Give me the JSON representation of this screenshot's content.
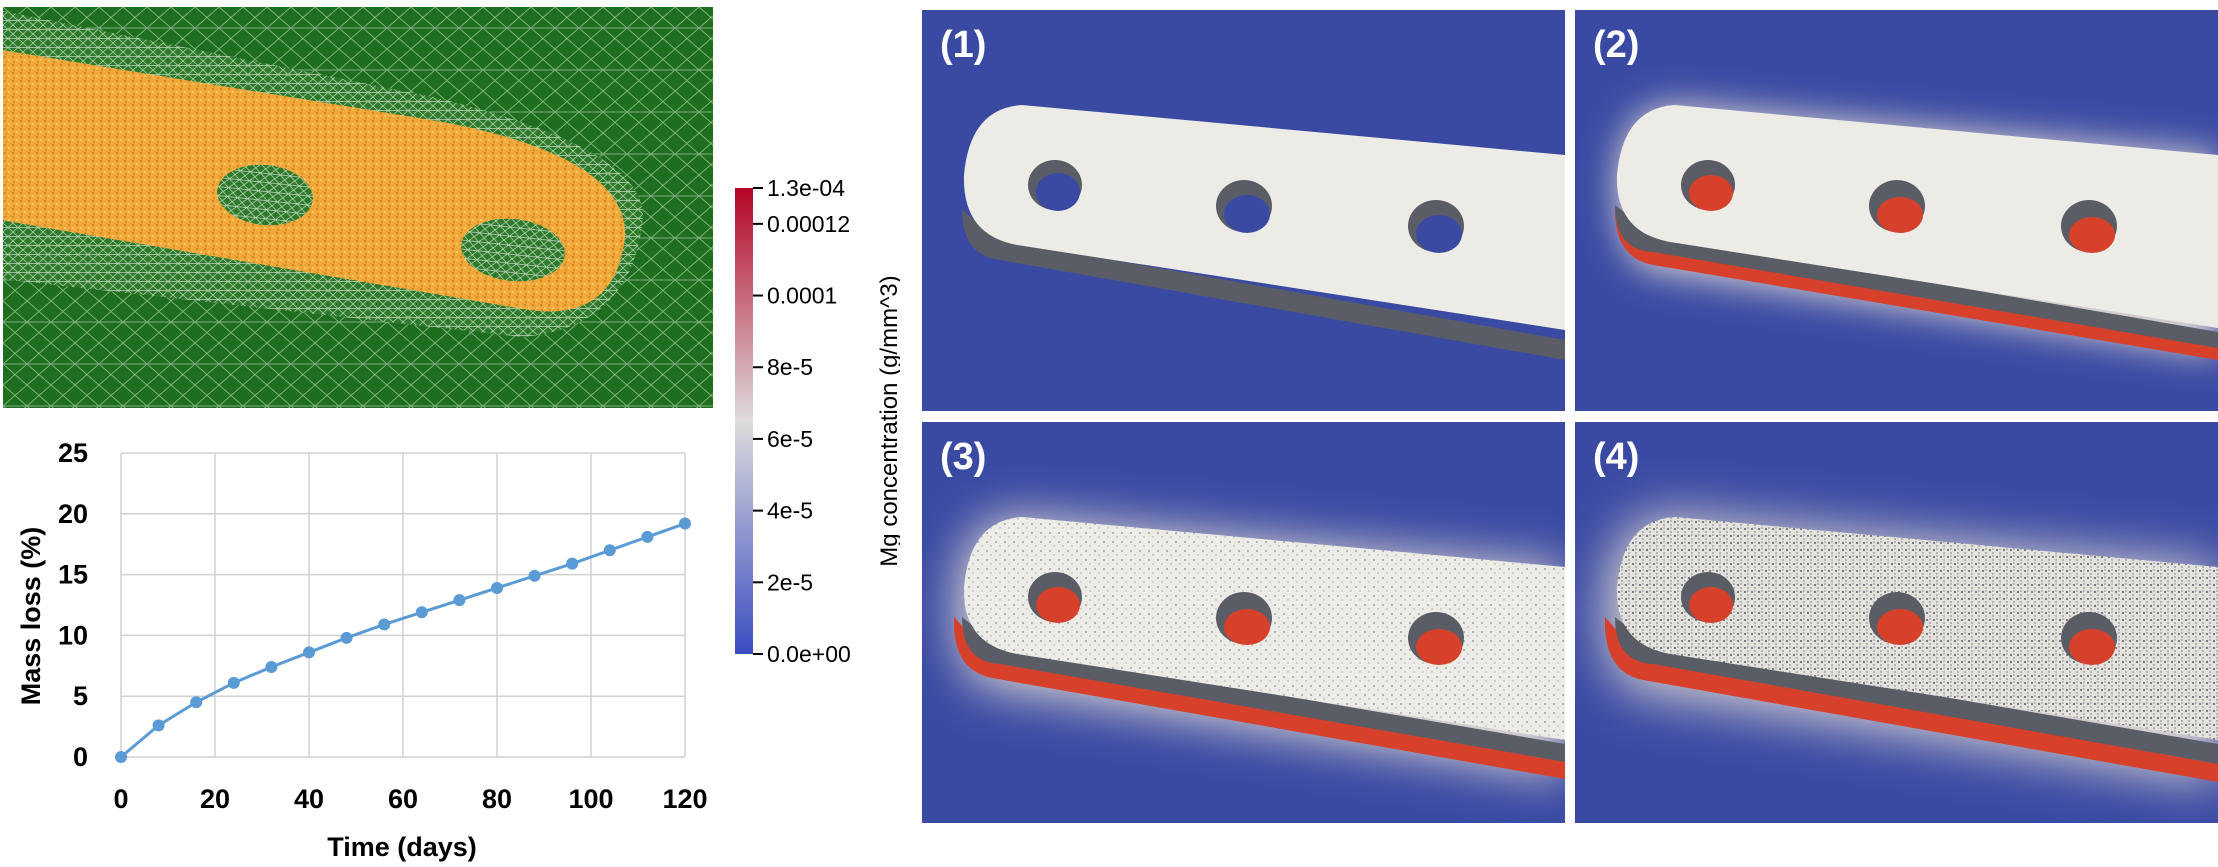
{
  "chart_data": {
    "type": "line",
    "title": "",
    "xlabel": "Time (days)",
    "ylabel": "Mass loss (%)",
    "xlim": [
      0,
      120
    ],
    "ylim": [
      0,
      25
    ],
    "xticks": [
      0,
      20,
      40,
      60,
      80,
      100,
      120
    ],
    "yticks": [
      0,
      5,
      10,
      15,
      20,
      25
    ],
    "grid": true,
    "series": [
      {
        "x": [
          0,
          8,
          16,
          24,
          32,
          40,
          48,
          56,
          64,
          72,
          80,
          88,
          96,
          104,
          112,
          120
        ],
        "y": [
          0,
          2.6,
          4.5,
          6.1,
          7.4,
          8.6,
          9.8,
          10.9,
          11.9,
          12.9,
          13.9,
          14.9,
          15.9,
          17.0,
          18.1,
          19.2
        ]
      }
    ]
  },
  "colorbar": {
    "label": "Mg concentration (g/mm^3)",
    "tick_labels": [
      "1.3e-04",
      "0.00012",
      "0.0001",
      "8e-5",
      "6e-5",
      "4e-5",
      "2e-5",
      "0.0e+00"
    ],
    "tick_values": [
      0.00013,
      0.00012,
      0.0001,
      8e-05,
      6e-05,
      4e-05,
      2e-05,
      0
    ],
    "range": [
      0,
      0.00013
    ],
    "colors": [
      "#3b4cc0",
      "#dddcdc",
      "#b40426"
    ]
  },
  "colors": {
    "line": "#5b9bd5",
    "background": "#3a4aa3",
    "mesh_green": "#1f6d1f",
    "plate_orange": "#f1a83a",
    "implant": "#ecebe6",
    "degraded": "#d7402b"
  },
  "panels": [
    {
      "label": "(1)"
    },
    {
      "label": "(2)"
    },
    {
      "label": "(3)"
    },
    {
      "label": "(4)"
    }
  ]
}
